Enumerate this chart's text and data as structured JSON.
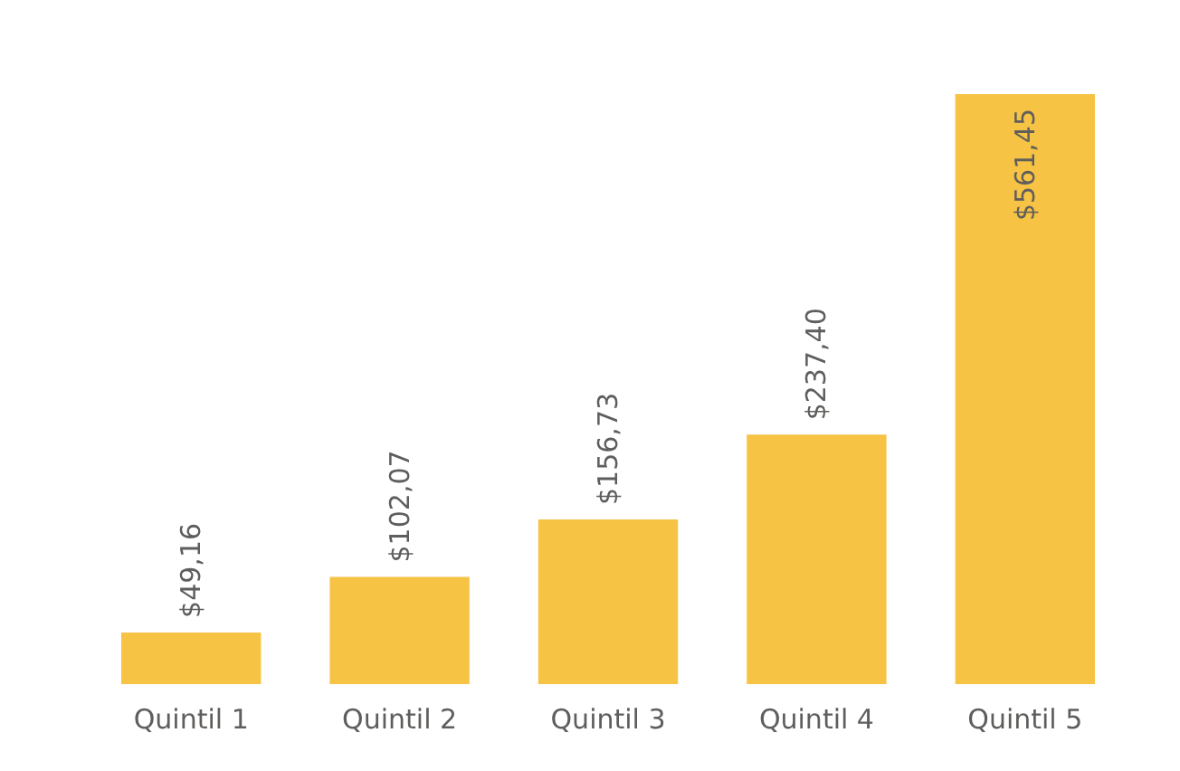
{
  "chart_data": {
    "type": "bar",
    "categories": [
      "Quintil 1",
      "Quintil 2",
      "Quintil 3",
      "Quintil 4",
      "Quintil 5"
    ],
    "values": [
      49.16,
      102.07,
      156.73,
      237.4,
      561.45
    ],
    "value_labels": [
      "$49,16",
      "$102,07",
      "$156,73",
      "$237,40",
      "$561,45"
    ],
    "color": "#f6c344"
  }
}
